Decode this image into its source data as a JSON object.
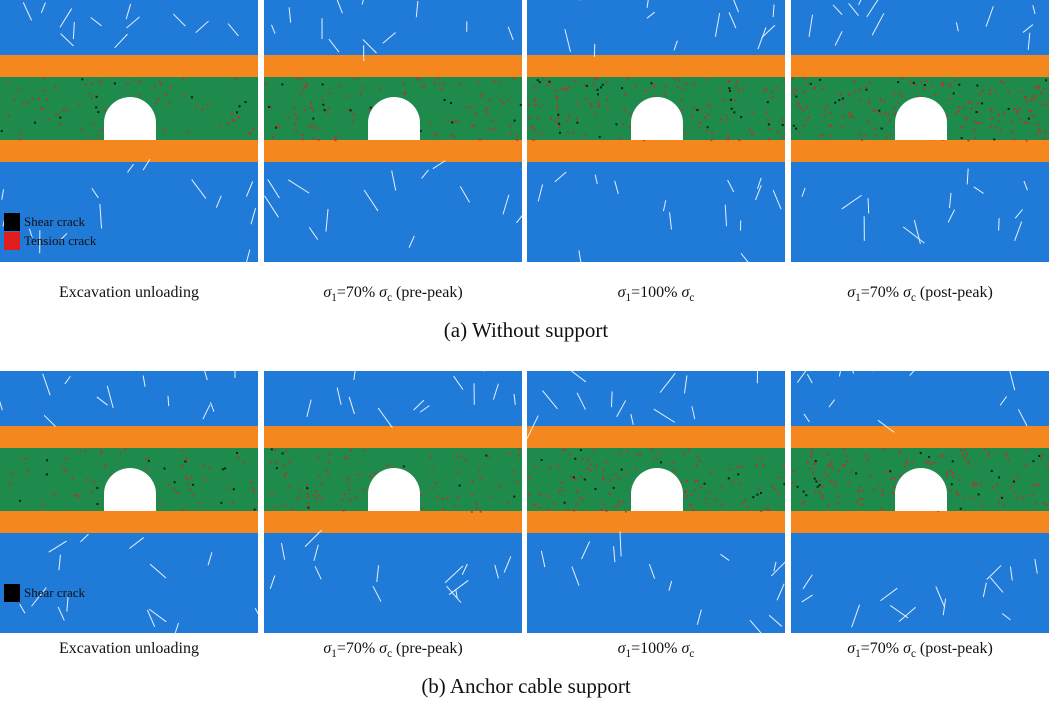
{
  "colors": {
    "rock_blue": "#1f7ad8",
    "coal_green": "#1e8a4c",
    "roof_floor_orange": "#f4881e",
    "tunnel": "#ffffff",
    "shear_crack": "#000000",
    "tension_crack": "#e11e1e"
  },
  "stage_captions": [
    {
      "prefix": "",
      "pct": "",
      "suffix": "",
      "plain": "Excavation unloading"
    },
    {
      "prefix": "σ",
      "pct": "=70% ",
      "suffix": " (pre-peak)",
      "plain": ""
    },
    {
      "prefix": "σ",
      "pct": "=100% ",
      "suffix": "",
      "plain": ""
    },
    {
      "prefix": "σ",
      "pct": "=70% ",
      "suffix": " (post-peak)",
      "plain": ""
    }
  ],
  "rows": [
    {
      "title": "(a) Without support",
      "legend": [
        {
          "label": "Shear crack",
          "color": "#000000"
        },
        {
          "label": "Tension crack",
          "color": "#e11e1e"
        }
      ],
      "damage_levels": [
        0.25,
        0.45,
        0.75,
        0.95
      ]
    },
    {
      "title": "(b) Anchor cable support",
      "legend": [
        {
          "label": "Shear crack",
          "color": "#000000"
        }
      ],
      "damage_levels": [
        0.2,
        0.35,
        0.55,
        0.7
      ]
    }
  ]
}
